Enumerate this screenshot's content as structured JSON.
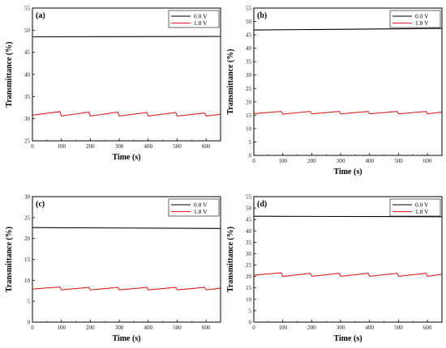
{
  "chart_data": [
    {
      "type": "line",
      "panel_label": "(a)",
      "xlabel": "Time (s)",
      "ylabel": "Transmittance (%)",
      "xlim": [
        0,
        650
      ],
      "ylim": [
        25,
        55
      ],
      "xticks": [
        0,
        100,
        200,
        300,
        400,
        500,
        600
      ],
      "yticks": [
        25,
        30,
        35,
        40,
        45,
        50,
        55
      ],
      "legend_position": "top-right",
      "series": [
        {
          "name": "0.0 V",
          "color": "#000000",
          "x": [
            0,
            650
          ],
          "y": [
            48.5,
            48.6
          ]
        },
        {
          "name": "1.8 V",
          "color": "#e02020",
          "x": [
            0,
            95,
            100,
            195,
            200,
            295,
            300,
            395,
            400,
            495,
            500,
            595,
            600,
            650
          ],
          "y": [
            30.8,
            31.6,
            30.6,
            31.5,
            30.6,
            31.5,
            30.6,
            31.4,
            30.6,
            31.4,
            30.6,
            31.3,
            30.6,
            31.0
          ]
        }
      ]
    },
    {
      "type": "line",
      "panel_label": "(b)",
      "xlabel": "Time (s)",
      "ylabel": "Transmittance (%)",
      "xlim": [
        0,
        650
      ],
      "ylim": [
        0,
        55
      ],
      "xticks": [
        0,
        100,
        200,
        300,
        400,
        500,
        600
      ],
      "yticks": [
        0,
        5,
        10,
        15,
        20,
        25,
        30,
        35,
        40,
        45,
        50,
        55
      ],
      "legend_position": "top-right",
      "series": [
        {
          "name": "0.0 V",
          "color": "#000000",
          "x": [
            0,
            650
          ],
          "y": [
            46.8,
            47.4
          ]
        },
        {
          "name": "1.8 V",
          "color": "#e02020",
          "x": [
            0,
            95,
            100,
            195,
            200,
            295,
            300,
            395,
            400,
            495,
            500,
            595,
            600,
            650
          ],
          "y": [
            15.6,
            16.4,
            15.4,
            16.4,
            15.5,
            16.4,
            15.5,
            16.4,
            15.5,
            16.4,
            15.5,
            16.4,
            15.5,
            16.2
          ]
        }
      ]
    },
    {
      "type": "line",
      "panel_label": "(c)",
      "xlabel": "Time (s)",
      "ylabel": "Transmittance (%)",
      "xlim": [
        0,
        650
      ],
      "ylim": [
        0,
        30
      ],
      "xticks": [
        0,
        100,
        200,
        300,
        400,
        500,
        600
      ],
      "yticks": [
        0,
        5,
        10,
        15,
        20,
        25,
        30
      ],
      "legend_position": "top-right",
      "series": [
        {
          "name": "0.0 V",
          "color": "#000000",
          "x": [
            0,
            650
          ],
          "y": [
            22.6,
            22.4
          ]
        },
        {
          "name": "1.8 V",
          "color": "#e02020",
          "x": [
            0,
            95,
            100,
            195,
            200,
            295,
            300,
            395,
            400,
            495,
            500,
            595,
            600,
            650
          ],
          "y": [
            7.9,
            8.4,
            7.7,
            8.3,
            7.7,
            8.3,
            7.7,
            8.3,
            7.7,
            8.3,
            7.7,
            8.3,
            7.7,
            8.1
          ]
        }
      ]
    },
    {
      "type": "line",
      "panel_label": "(d)",
      "xlabel": "Time (s)",
      "ylabel": "Transmittance (%)",
      "xlim": [
        0,
        650
      ],
      "ylim": [
        0,
        55
      ],
      "xticks": [
        0,
        100,
        200,
        300,
        400,
        500,
        600
      ],
      "yticks": [
        0,
        5,
        10,
        15,
        20,
        25,
        30,
        35,
        40,
        45,
        50,
        55
      ],
      "legend_position": "top-right",
      "series": [
        {
          "name": "0.0 V",
          "color": "#000000",
          "x": [
            0,
            650
          ],
          "y": [
            46.4,
            46.2
          ]
        },
        {
          "name": "1.8 V",
          "color": "#e02020",
          "x": [
            0,
            95,
            100,
            195,
            200,
            295,
            300,
            395,
            400,
            495,
            500,
            595,
            600,
            650
          ],
          "y": [
            20.6,
            21.6,
            20.0,
            21.4,
            20.1,
            21.4,
            20.1,
            21.4,
            20.1,
            21.4,
            20.1,
            21.4,
            20.1,
            21.0
          ]
        }
      ]
    }
  ]
}
